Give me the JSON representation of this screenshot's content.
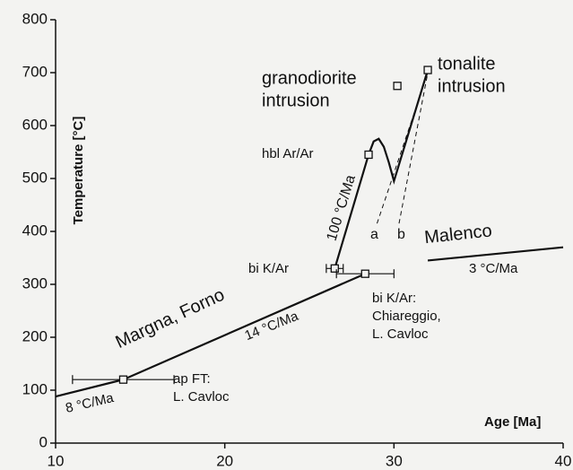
{
  "chart_data": {
    "type": "scatter",
    "xlabel": "Age [Ma]",
    "ylabel": "Temperature [°C]",
    "xlim": [
      10,
      40
    ],
    "xticks": [
      10,
      20,
      30,
      40
    ],
    "ylim": [
      0,
      800
    ],
    "yticks": [
      0,
      100,
      200,
      300,
      400,
      500,
      600,
      700,
      800
    ],
    "points": {
      "x": [
        14,
        26.5,
        28.3,
        28.5,
        32,
        30.2
      ],
      "values": [
        120,
        330,
        320,
        545,
        705,
        675
      ],
      "xerr": [
        3,
        0.5,
        1.7,
        0,
        0,
        0
      ]
    },
    "paths": [
      {
        "style": "solid",
        "x": [
          10,
          14,
          28.3
        ],
        "values": [
          88,
          120,
          320
        ]
      },
      {
        "style": "solid",
        "x": [
          26.5,
          28.5
        ],
        "values": [
          330,
          545
        ]
      },
      {
        "style": "solid",
        "x": [
          28.5,
          28.8,
          29.1,
          29.4,
          29.7,
          30,
          32
        ],
        "values": [
          545,
          570,
          575,
          560,
          530,
          495,
          705
        ]
      },
      {
        "style": "solid",
        "x": [
          32,
          40
        ],
        "values": [
          345,
          370
        ]
      },
      {
        "style": "dashed",
        "x": [
          29,
          32
        ],
        "values": [
          415,
          700
        ]
      },
      {
        "style": "dashed",
        "x": [
          30.3,
          32
        ],
        "values": [
          415,
          700
        ]
      }
    ],
    "color": "#111111",
    "annotations": [
      {
        "lines": [
          "granodiorite",
          "intrusion"
        ]
      },
      {
        "lines": [
          "tonalite",
          "intrusion"
        ]
      },
      {
        "lines": [
          "hbl Ar/Ar"
        ]
      },
      {
        "lines": [
          "100 °C/Ma"
        ]
      },
      {
        "lines": [
          "a"
        ]
      },
      {
        "lines": [
          "b"
        ]
      },
      {
        "lines": [
          "Malenco"
        ]
      },
      {
        "lines": [
          "3 °C/Ma"
        ]
      },
      {
        "lines": [
          "bi K/Ar"
        ]
      },
      {
        "lines": [
          "bi K/Ar:",
          "Chiareggio,",
          "L. Cavloc"
        ]
      },
      {
        "lines": [
          "Margna, Forno"
        ]
      },
      {
        "lines": [
          "14 °C/Ma"
        ]
      },
      {
        "lines": [
          "ap FT:",
          "L. Cavloc"
        ]
      },
      {
        "lines": [
          "8 °C/Ma"
        ]
      }
    ]
  }
}
